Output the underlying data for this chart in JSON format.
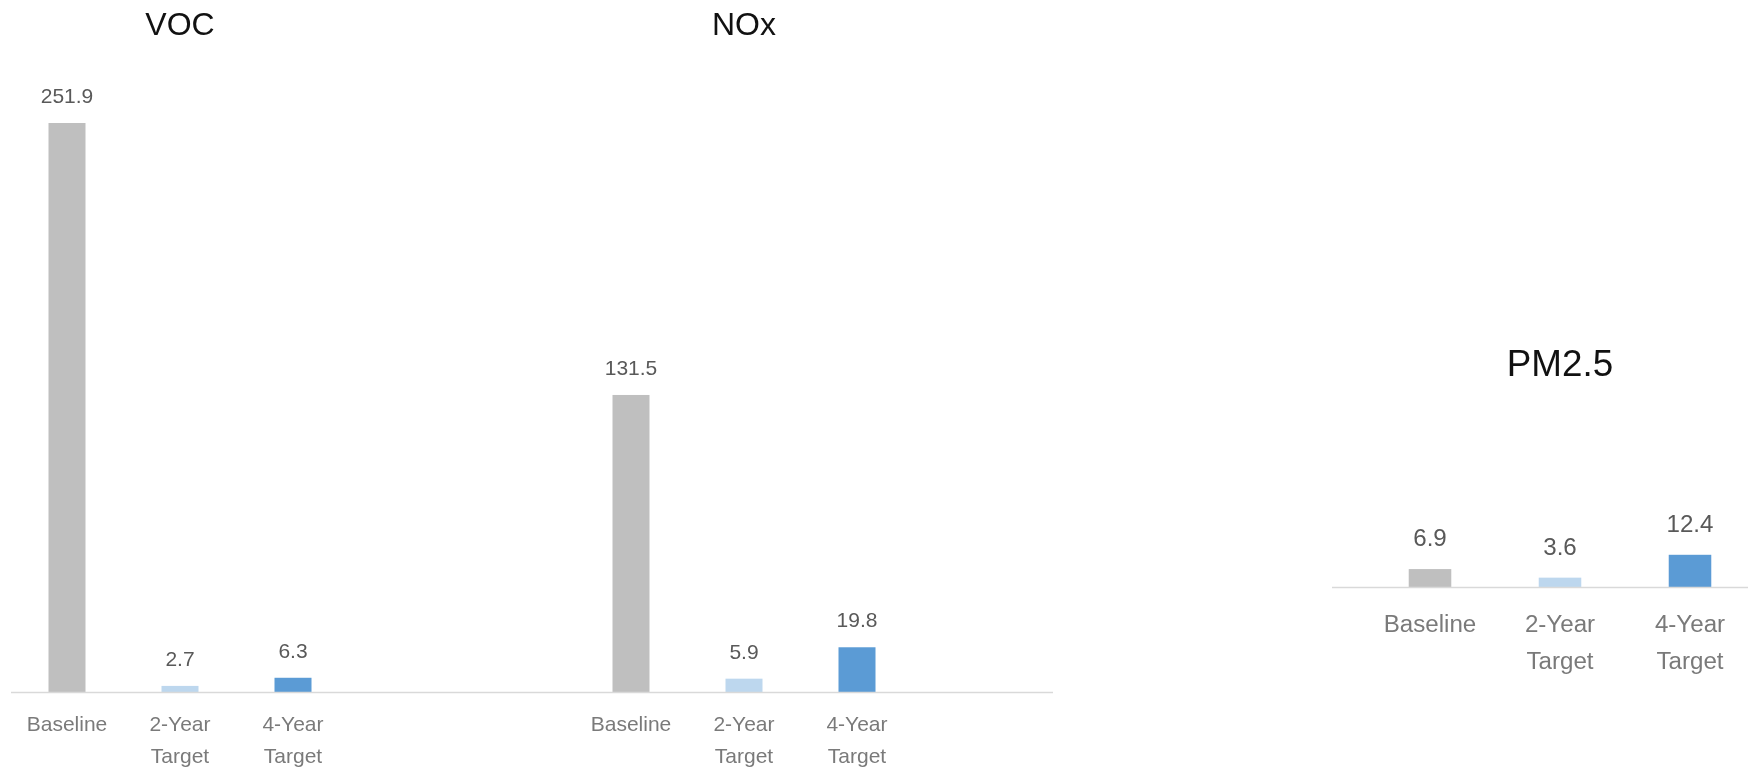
{
  "chart_data": [
    {
      "type": "bar",
      "title": "VOC",
      "categories": [
        "Baseline",
        "2-Year Target",
        "4-Year Target"
      ],
      "values": [
        251.9,
        2.7,
        6.3
      ],
      "colors": [
        "#bfbfbf",
        "#bdd7ee",
        "#5b9bd5"
      ],
      "data_labels": true,
      "tick_labels": "x"
    },
    {
      "type": "bar",
      "title": "NOx",
      "categories": [
        "Baseline",
        "2-Year Target",
        "4-Year Target"
      ],
      "values": [
        131.5,
        5.9,
        19.8
      ],
      "colors": [
        "#bfbfbf",
        "#bdd7ee",
        "#5b9bd5"
      ],
      "data_labels": true,
      "tick_labels": "x"
    },
    {
      "type": "bar",
      "title": "PM2.5",
      "categories": [
        "Baseline",
        "2-Year Target",
        "4-Year Target"
      ],
      "values": [
        6.9,
        3.6,
        12.4
      ],
      "colors": [
        "#bfbfbf",
        "#bdd7ee",
        "#5b9bd5"
      ],
      "data_labels": true,
      "tick_labels": "x"
    }
  ]
}
